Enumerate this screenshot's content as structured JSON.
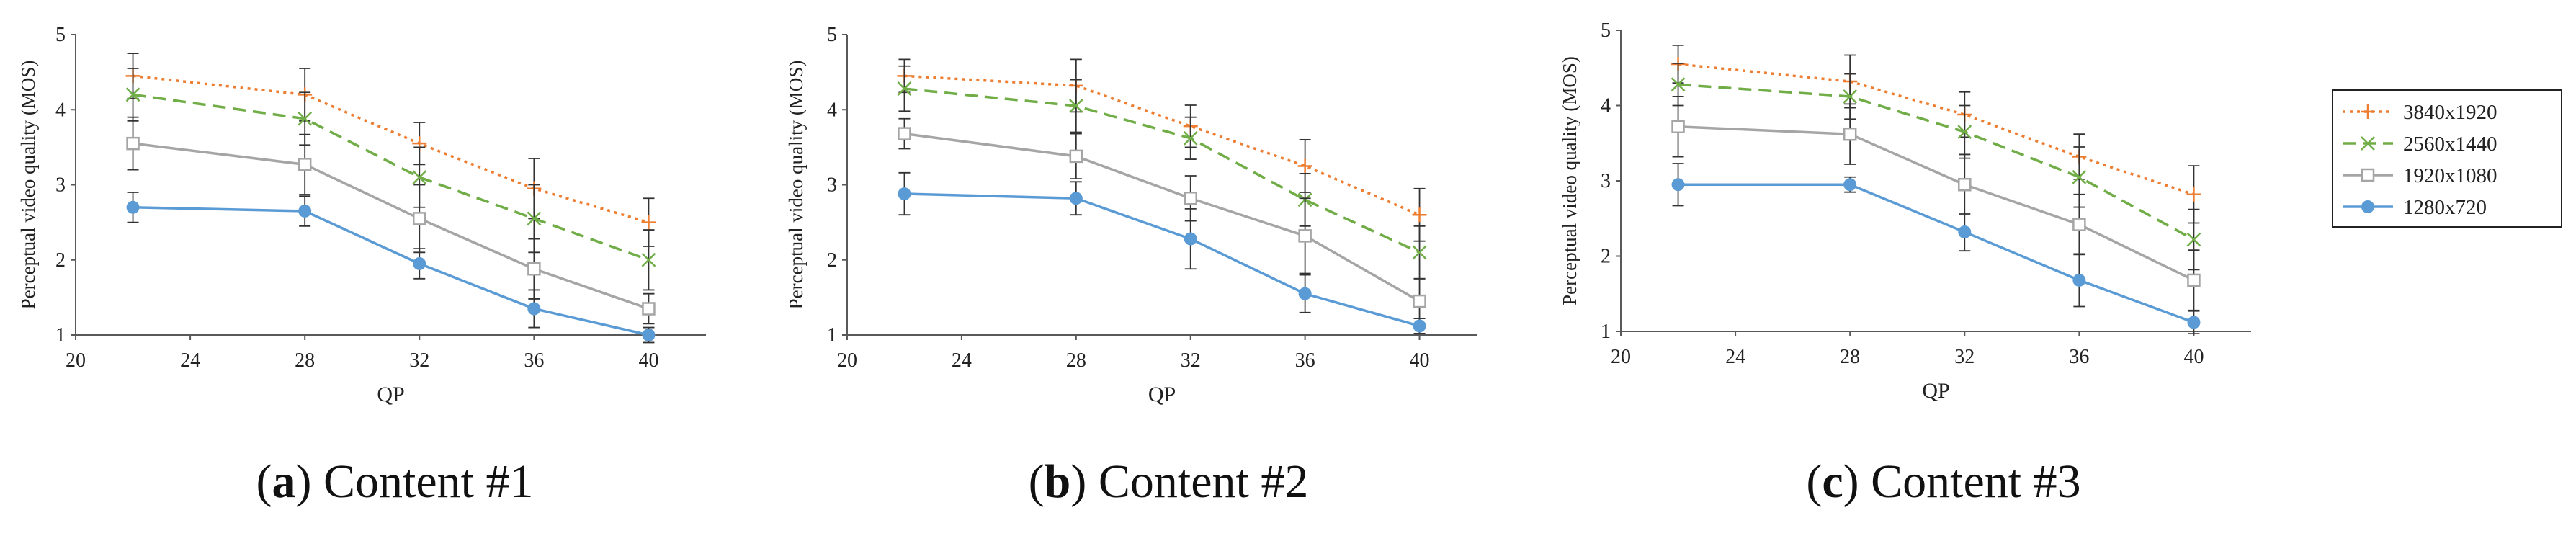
{
  "figure": {
    "legend": [
      {
        "name": "3840x1920",
        "color": "#ED7D31",
        "dash": "dotted",
        "marker": "plus"
      },
      {
        "name": "2560x1440",
        "color": "#70AD47",
        "dash": "dashed",
        "marker": "x"
      },
      {
        "name": "1920x1080",
        "color": "#A5A5A5",
        "dash": "solid",
        "marker": "square-open"
      },
      {
        "name": "1280x720",
        "color": "#5B9BD5",
        "dash": "solid",
        "marker": "circle-filled"
      }
    ]
  },
  "chart_data": [
    {
      "type": "line",
      "caption_label": "a",
      "caption_text": "Content #1",
      "xlabel": "QP",
      "ylabel": "Perceptual video quality (MOS)",
      "xlim": [
        20,
        42
      ],
      "ylim": [
        1,
        5
      ],
      "xticks": [
        20,
        24,
        28,
        32,
        36,
        40
      ],
      "yticks": [
        1,
        2,
        3,
        4,
        5
      ],
      "x": [
        22,
        28,
        32,
        36,
        40
      ],
      "series": [
        {
          "name": "3840x1920",
          "values": [
            4.45,
            4.2,
            3.55,
            2.95,
            2.5
          ],
          "err": [
            0.3,
            0.35,
            0.28,
            0.4,
            0.32
          ]
        },
        {
          "name": "2560x1440",
          "values": [
            4.2,
            3.88,
            3.1,
            2.55,
            2.0
          ],
          "err": [
            0.35,
            0.35,
            0.4,
            0.45,
            0.4
          ]
        },
        {
          "name": "1920x1080",
          "values": [
            3.55,
            3.27,
            2.55,
            1.88,
            1.35
          ],
          "err": [
            0.35,
            0.4,
            0.45,
            0.4,
            0.2
          ]
        },
        {
          "name": "1280x720",
          "values": [
            2.7,
            2.65,
            1.95,
            1.35,
            1.0
          ],
          "err": [
            0.2,
            0.2,
            0.2,
            0.25,
            0.1
          ]
        }
      ]
    },
    {
      "type": "line",
      "caption_label": "b",
      "caption_text": "Content #2",
      "xlabel": "QP",
      "ylabel": "Perceptual video quality (MOS)",
      "xlim": [
        20,
        42
      ],
      "ylim": [
        1,
        5
      ],
      "xticks": [
        20,
        24,
        28,
        32,
        36,
        40
      ],
      "yticks": [
        1,
        2,
        3,
        4,
        5
      ],
      "x": [
        22,
        28,
        32,
        36,
        40
      ],
      "series": [
        {
          "name": "3840x1920",
          "values": [
            4.45,
            4.32,
            3.78,
            3.25,
            2.6
          ],
          "err": [
            0.22,
            0.35,
            0.28,
            0.35,
            0.35
          ]
        },
        {
          "name": "2560x1440",
          "values": [
            4.28,
            4.05,
            3.62,
            2.8,
            2.1
          ],
          "err": [
            0.3,
            0.35,
            0.28,
            0.35,
            0.35
          ]
        },
        {
          "name": "1920x1080",
          "values": [
            3.68,
            3.38,
            2.82,
            2.32,
            1.45
          ],
          "err": [
            0.2,
            0.3,
            0.3,
            0.5,
            0.3
          ]
        },
        {
          "name": "1280x720",
          "values": [
            2.88,
            2.82,
            2.28,
            1.55,
            1.12
          ],
          "err": [
            0.28,
            0.22,
            0.4,
            0.25,
            0.1
          ]
        }
      ]
    },
    {
      "type": "line",
      "caption_label": "c",
      "caption_text": "Content #3",
      "xlabel": "QP",
      "ylabel": "Perceptual video quality (MOS)",
      "xlim": [
        20,
        42
      ],
      "ylim": [
        1,
        5
      ],
      "xticks": [
        20,
        24,
        28,
        32,
        36,
        40
      ],
      "yticks": [
        1,
        2,
        3,
        4,
        5
      ],
      "x": [
        22,
        28,
        32,
        36,
        40
      ],
      "series": [
        {
          "name": "3840x1920",
          "values": [
            4.55,
            4.32,
            3.88,
            3.32,
            2.82
          ],
          "err": [
            0.25,
            0.35,
            0.3,
            0.3,
            0.38
          ]
        },
        {
          "name": "2560x1440",
          "values": [
            4.28,
            4.12,
            3.65,
            3.05,
            2.22
          ],
          "err": [
            0.28,
            0.3,
            0.35,
            0.4,
            0.4
          ]
        },
        {
          "name": "1920x1080",
          "values": [
            3.72,
            3.62,
            2.95,
            2.42,
            1.68
          ],
          "err": [
            0.4,
            0.4,
            0.4,
            0.4,
            0.4
          ]
        },
        {
          "name": "1280x720",
          "values": [
            2.95,
            2.95,
            2.32,
            1.68,
            1.12
          ],
          "err": [
            0.28,
            0.1,
            0.25,
            0.35,
            0.15
          ]
        }
      ]
    }
  ]
}
